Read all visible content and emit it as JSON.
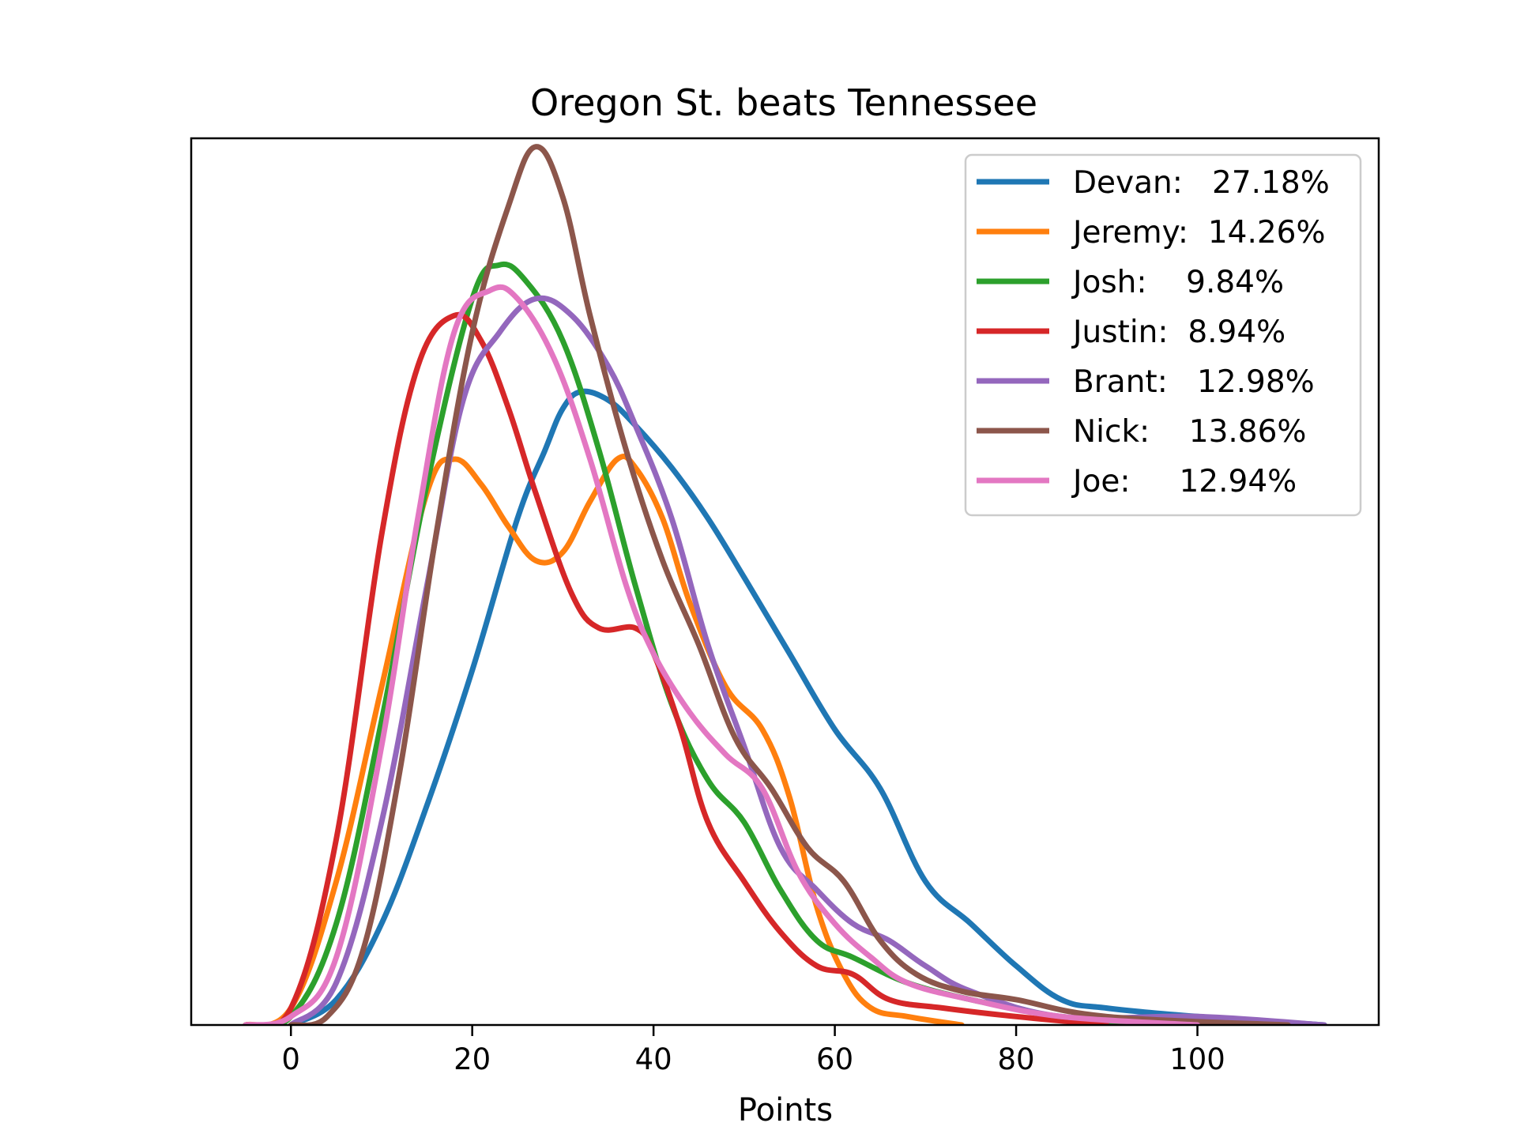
{
  "chart_data": {
    "type": "line",
    "title": "Oregon St. beats Tennessee",
    "xlabel": "Points",
    "ylabel": "",
    "xlim": [
      -11,
      120
    ],
    "ylim": [
      0,
      1.05
    ],
    "x_ticks": [
      0,
      20,
      40,
      60,
      80,
      100
    ],
    "x_tick_labels": [
      "0",
      "20",
      "40",
      "60",
      "80",
      "100"
    ],
    "y_ticks_visible": false,
    "grid": false,
    "legend_position": "top-right",
    "series": [
      {
        "name": "Devan:   27.18%",
        "color": "#1f77b4",
        "points": [
          [
            0,
            0
          ],
          [
            5,
            0.03
          ],
          [
            10,
            0.12
          ],
          [
            15,
            0.26
          ],
          [
            20,
            0.42
          ],
          [
            25,
            0.6
          ],
          [
            28,
            0.68
          ],
          [
            30,
            0.73
          ],
          [
            32,
            0.75
          ],
          [
            35,
            0.74
          ],
          [
            38,
            0.71
          ],
          [
            42,
            0.66
          ],
          [
            46,
            0.6
          ],
          [
            50,
            0.53
          ],
          [
            55,
            0.44
          ],
          [
            60,
            0.35
          ],
          [
            65,
            0.28
          ],
          [
            70,
            0.17
          ],
          [
            75,
            0.12
          ],
          [
            80,
            0.07
          ],
          [
            85,
            0.03
          ],
          [
            90,
            0.02
          ],
          [
            100,
            0.01
          ],
          [
            114,
            0
          ]
        ]
      },
      {
        "name": "Jeremy:  14.26%",
        "color": "#ff7f0e",
        "points": [
          [
            -5,
            0
          ],
          [
            0,
            0.02
          ],
          [
            5,
            0.17
          ],
          [
            10,
            0.4
          ],
          [
            15,
            0.63
          ],
          [
            18,
            0.67
          ],
          [
            21,
            0.64
          ],
          [
            24,
            0.59
          ],
          [
            27,
            0.55
          ],
          [
            30,
            0.56
          ],
          [
            33,
            0.62
          ],
          [
            36,
            0.67
          ],
          [
            38,
            0.66
          ],
          [
            41,
            0.6
          ],
          [
            44,
            0.5
          ],
          [
            48,
            0.4
          ],
          [
            52,
            0.35
          ],
          [
            55,
            0.27
          ],
          [
            58,
            0.14
          ],
          [
            61,
            0.06
          ],
          [
            64,
            0.02
          ],
          [
            68,
            0.01
          ],
          [
            74,
            0
          ]
        ]
      },
      {
        "name": "Josh:    9.84%",
        "color": "#2ca02c",
        "points": [
          [
            -5,
            0
          ],
          [
            0,
            0.01
          ],
          [
            5,
            0.12
          ],
          [
            10,
            0.36
          ],
          [
            15,
            0.64
          ],
          [
            20,
            0.86
          ],
          [
            23,
            0.9
          ],
          [
            26,
            0.88
          ],
          [
            30,
            0.81
          ],
          [
            34,
            0.68
          ],
          [
            38,
            0.52
          ],
          [
            42,
            0.38
          ],
          [
            46,
            0.29
          ],
          [
            50,
            0.24
          ],
          [
            54,
            0.16
          ],
          [
            58,
            0.1
          ],
          [
            62,
            0.08
          ],
          [
            68,
            0.05
          ],
          [
            75,
            0.03
          ],
          [
            80,
            0.02
          ],
          [
            90,
            0
          ],
          [
            110,
            0
          ]
        ]
      },
      {
        "name": "Justin:  8.94%",
        "color": "#d62728",
        "points": [
          [
            -5,
            0
          ],
          [
            0,
            0.02
          ],
          [
            5,
            0.22
          ],
          [
            10,
            0.58
          ],
          [
            14,
            0.78
          ],
          [
            18,
            0.84
          ],
          [
            21,
            0.81
          ],
          [
            24,
            0.73
          ],
          [
            27,
            0.63
          ],
          [
            31,
            0.51
          ],
          [
            34,
            0.47
          ],
          [
            38,
            0.47
          ],
          [
            40,
            0.44
          ],
          [
            43,
            0.35
          ],
          [
            46,
            0.24
          ],
          [
            50,
            0.17
          ],
          [
            54,
            0.11
          ],
          [
            58,
            0.07
          ],
          [
            62,
            0.06
          ],
          [
            66,
            0.03
          ],
          [
            72,
            0.02
          ],
          [
            80,
            0.01
          ],
          [
            90,
            0
          ]
        ]
      },
      {
        "name": "Brant:   12.98%",
        "color": "#9467bd",
        "points": [
          [
            0,
            0
          ],
          [
            5,
            0.05
          ],
          [
            10,
            0.24
          ],
          [
            15,
            0.52
          ],
          [
            19,
            0.74
          ],
          [
            23,
            0.82
          ],
          [
            27,
            0.86
          ],
          [
            31,
            0.84
          ],
          [
            35,
            0.78
          ],
          [
            38,
            0.71
          ],
          [
            42,
            0.6
          ],
          [
            46,
            0.45
          ],
          [
            50,
            0.33
          ],
          [
            54,
            0.21
          ],
          [
            58,
            0.16
          ],
          [
            62,
            0.12
          ],
          [
            66,
            0.1
          ],
          [
            70,
            0.07
          ],
          [
            75,
            0.04
          ],
          [
            85,
            0.01
          ],
          [
            100,
            0.01
          ],
          [
            114,
            0
          ]
        ]
      },
      {
        "name": "Nick:    13.86%",
        "color": "#8c564b",
        "points": [
          [
            0,
            0
          ],
          [
            4,
            0.01
          ],
          [
            8,
            0.09
          ],
          [
            12,
            0.3
          ],
          [
            16,
            0.58
          ],
          [
            20,
            0.82
          ],
          [
            24,
            0.97
          ],
          [
            27,
            1.04
          ],
          [
            30,
            0.98
          ],
          [
            33,
            0.84
          ],
          [
            37,
            0.68
          ],
          [
            41,
            0.55
          ],
          [
            45,
            0.45
          ],
          [
            49,
            0.34
          ],
          [
            53,
            0.28
          ],
          [
            57,
            0.21
          ],
          [
            61,
            0.17
          ],
          [
            65,
            0.1
          ],
          [
            69,
            0.06
          ],
          [
            74,
            0.04
          ],
          [
            80,
            0.03
          ],
          [
            90,
            0.01
          ],
          [
            110,
            0
          ]
        ]
      },
      {
        "name": "Joe:     12.94%",
        "color": "#e377c2",
        "points": [
          [
            -5,
            0
          ],
          [
            0,
            0.01
          ],
          [
            5,
            0.08
          ],
          [
            10,
            0.33
          ],
          [
            14,
            0.6
          ],
          [
            18,
            0.82
          ],
          [
            22,
            0.87
          ],
          [
            25,
            0.86
          ],
          [
            29,
            0.79
          ],
          [
            33,
            0.67
          ],
          [
            37,
            0.52
          ],
          [
            40,
            0.44
          ],
          [
            44,
            0.37
          ],
          [
            48,
            0.32
          ],
          [
            52,
            0.28
          ],
          [
            56,
            0.18
          ],
          [
            60,
            0.12
          ],
          [
            64,
            0.08
          ],
          [
            68,
            0.05
          ],
          [
            75,
            0.03
          ],
          [
            85,
            0.01
          ],
          [
            100,
            0
          ]
        ]
      }
    ]
  }
}
